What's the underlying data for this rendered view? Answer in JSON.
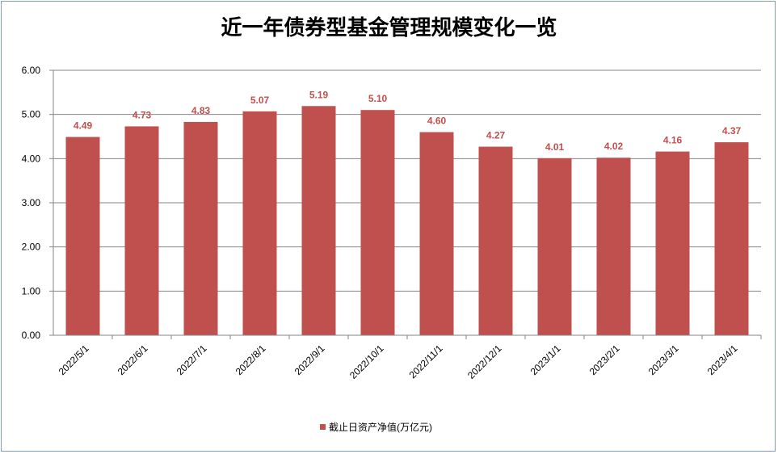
{
  "chart_data": {
    "type": "bar",
    "title": "近一年债券型基金管理规模变化一览",
    "categories": [
      "2022/5/1",
      "2022/6/1",
      "2022/7/1",
      "2022/8/1",
      "2022/9/1",
      "2022/10/1",
      "2022/11/1",
      "2022/12/1",
      "2023/1/1",
      "2023/2/1",
      "2023/3/1",
      "2023/4/1"
    ],
    "series": [
      {
        "name": "截止日资产净值(万亿元)",
        "values": [
          4.49,
          4.73,
          4.83,
          5.07,
          5.19,
          5.1,
          4.6,
          4.27,
          4.01,
          4.02,
          4.16,
          4.37
        ],
        "labels": [
          "4.49",
          "4.73",
          "4.83",
          "5.07",
          "5.19",
          "5.10",
          "4.60",
          "4.27",
          "4.01",
          "4.02",
          "4.16",
          "4.37"
        ],
        "color": "#c0504d"
      }
    ],
    "yticks": [
      "0.00",
      "1.00",
      "2.00",
      "3.00",
      "4.00",
      "5.00",
      "6.00"
    ],
    "ylim": [
      0,
      6
    ],
    "grid": true,
    "legend_position": "bottom"
  }
}
